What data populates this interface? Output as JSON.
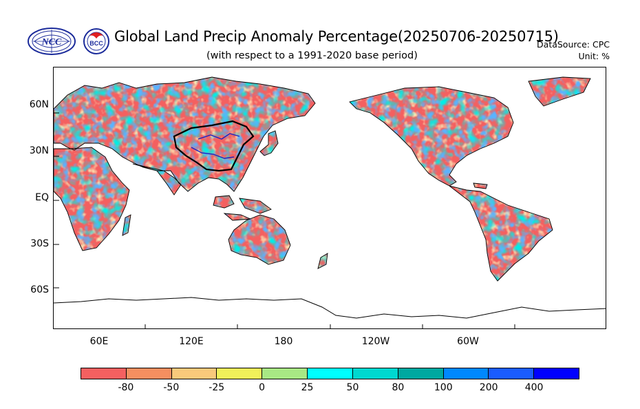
{
  "header": {
    "title": "Global Land Precip Anomaly Percentage(20250706-20250715)",
    "subtitle": "(with respect to a 1991-2020 base period)",
    "datasource": "DataSource:  CPC",
    "unit": "Unit:  %"
  },
  "logos": {
    "ncc_text": "NCC",
    "bcc_text": "BCC"
  },
  "map": {
    "projection": "cylindrical equidistant, centered on 180",
    "lon_range": [
      30,
      390
    ],
    "lat_range": [
      -85,
      85
    ],
    "y_axis": {
      "ticks": [
        {
          "lat": 60,
          "label": "60N"
        },
        {
          "lat": 30,
          "label": "30N"
        },
        {
          "lat": 0,
          "label": "EQ"
        },
        {
          "lat": -30,
          "label": "30S"
        },
        {
          "lat": -60,
          "label": "60S"
        }
      ]
    },
    "x_axis": {
      "ticks": [
        {
          "lon": 60,
          "label": "60E"
        },
        {
          "lon": 120,
          "label": "120E"
        },
        {
          "lon": 180,
          "label": "180"
        },
        {
          "lon": 240,
          "label": "120W"
        },
        {
          "lon": 300,
          "label": "60W"
        }
      ]
    },
    "dominant_colors": {
      "dry": "#f46060",
      "wet": "#1a5cff"
    }
  },
  "colorbar": {
    "colors": [
      "#f46060",
      "#f58f60",
      "#f9c97b",
      "#f0f05a",
      "#a8e884",
      "#00ffff",
      "#00d8d0",
      "#00a8a0",
      "#0088ff",
      "#1a5cff",
      "#0000ff"
    ],
    "labels": [
      "-80",
      "-50",
      "-25",
      "0",
      "25",
      "50",
      "80",
      "100",
      "200",
      "400"
    ]
  }
}
